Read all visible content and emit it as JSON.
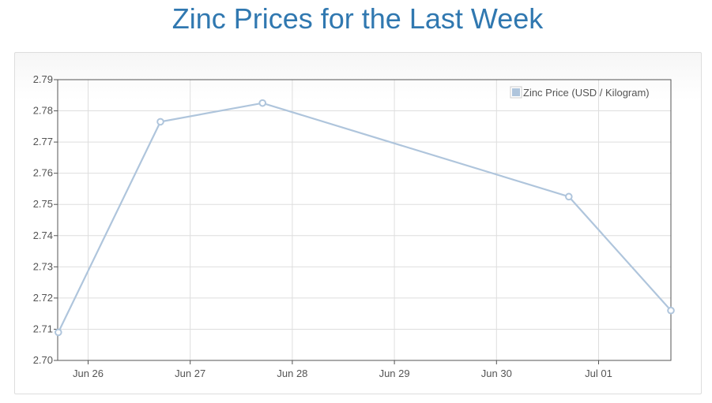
{
  "page": {
    "title": "Zinc Prices for the Last Week"
  },
  "colors": {
    "title": "#3078b0",
    "series_line": "#afc5dc",
    "grid": "#dedede",
    "axis": "#545454"
  },
  "chart_data": {
    "type": "line",
    "title": "Zinc Prices for the Last Week",
    "xlabel": "",
    "ylabel": "",
    "x_tick_labels": [
      "Jun 26",
      "Jun 27",
      "Jun 28",
      "Jun 29",
      "Jun 30",
      "Jul 01"
    ],
    "ylim": [
      2.7,
      2.79
    ],
    "y_ticks": [
      "2.70",
      "2.71",
      "2.72",
      "2.73",
      "2.74",
      "2.75",
      "2.76",
      "2.77",
      "2.78",
      "2.79"
    ],
    "grid": true,
    "legend_position": "top-right",
    "series": [
      {
        "name": "Zinc Price (USD / Kilogram)",
        "points": [
          {
            "x": "2024-06-25T17:00",
            "y": 2.709
          },
          {
            "x": "2024-06-26T17:00",
            "y": 2.7765
          },
          {
            "x": "2024-06-27T17:00",
            "y": 2.7825
          },
          {
            "x": "2024-06-30T17:00",
            "y": 2.7525
          },
          {
            "x": "2024-07-01T17:00",
            "y": 2.716
          }
        ]
      }
    ]
  }
}
